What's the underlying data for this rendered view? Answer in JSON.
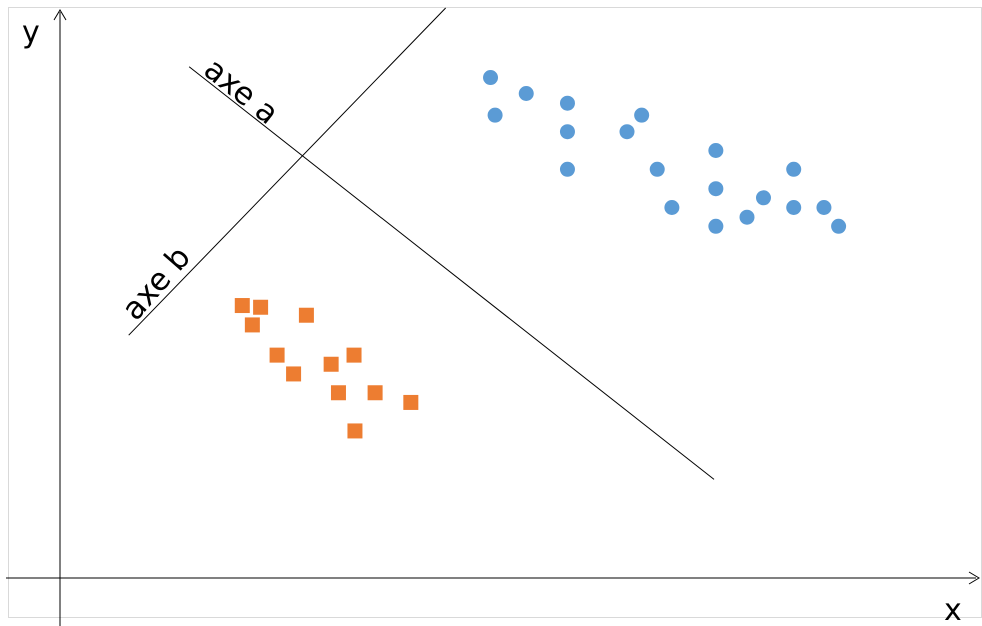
{
  "chart_data": {
    "type": "scatter",
    "xlabel": "x",
    "ylabel": "y",
    "xlim": [
      0,
      100
    ],
    "ylim": [
      0,
      100
    ],
    "grid": false,
    "legend": "none",
    "series": [
      {
        "marker": "circle",
        "color": "#5b9bd5",
        "points": [
          [
            47.0,
            87.8
          ],
          [
            47.5,
            81.2
          ],
          [
            50.9,
            85.0
          ],
          [
            55.4,
            83.3
          ],
          [
            55.4,
            78.3
          ],
          [
            55.4,
            71.7
          ],
          [
            61.9,
            78.3
          ],
          [
            63.5,
            81.2
          ],
          [
            65.2,
            71.7
          ],
          [
            66.8,
            65.0
          ],
          [
            71.6,
            75.0
          ],
          [
            71.6,
            68.3
          ],
          [
            71.6,
            61.7
          ],
          [
            75.0,
            63.3
          ],
          [
            76.8,
            66.7
          ],
          [
            80.1,
            71.7
          ],
          [
            80.1,
            65.0
          ],
          [
            83.4,
            65.0
          ],
          [
            85.0,
            61.7
          ]
        ]
      },
      {
        "marker": "square",
        "color": "#ed7d31",
        "points": [
          [
            19.9,
            47.8
          ],
          [
            21.9,
            47.5
          ],
          [
            21.0,
            44.4
          ],
          [
            26.9,
            46.1
          ],
          [
            23.7,
            39.1
          ],
          [
            25.5,
            35.8
          ],
          [
            29.6,
            37.5
          ],
          [
            32.1,
            39.1
          ],
          [
            30.4,
            32.5
          ],
          [
            34.4,
            32.5
          ],
          [
            32.2,
            25.8
          ],
          [
            38.3,
            30.8
          ]
        ]
      }
    ],
    "annotations": {
      "line_a": {
        "label": "axe a",
        "from": [
          14.1,
          89.7
        ],
        "to": [
          71.4,
          17.3
        ]
      },
      "line_b": {
        "label": "axe b",
        "from": [
          7.5,
          42.6
        ],
        "to": [
          42.1,
          100.0
        ]
      }
    }
  }
}
